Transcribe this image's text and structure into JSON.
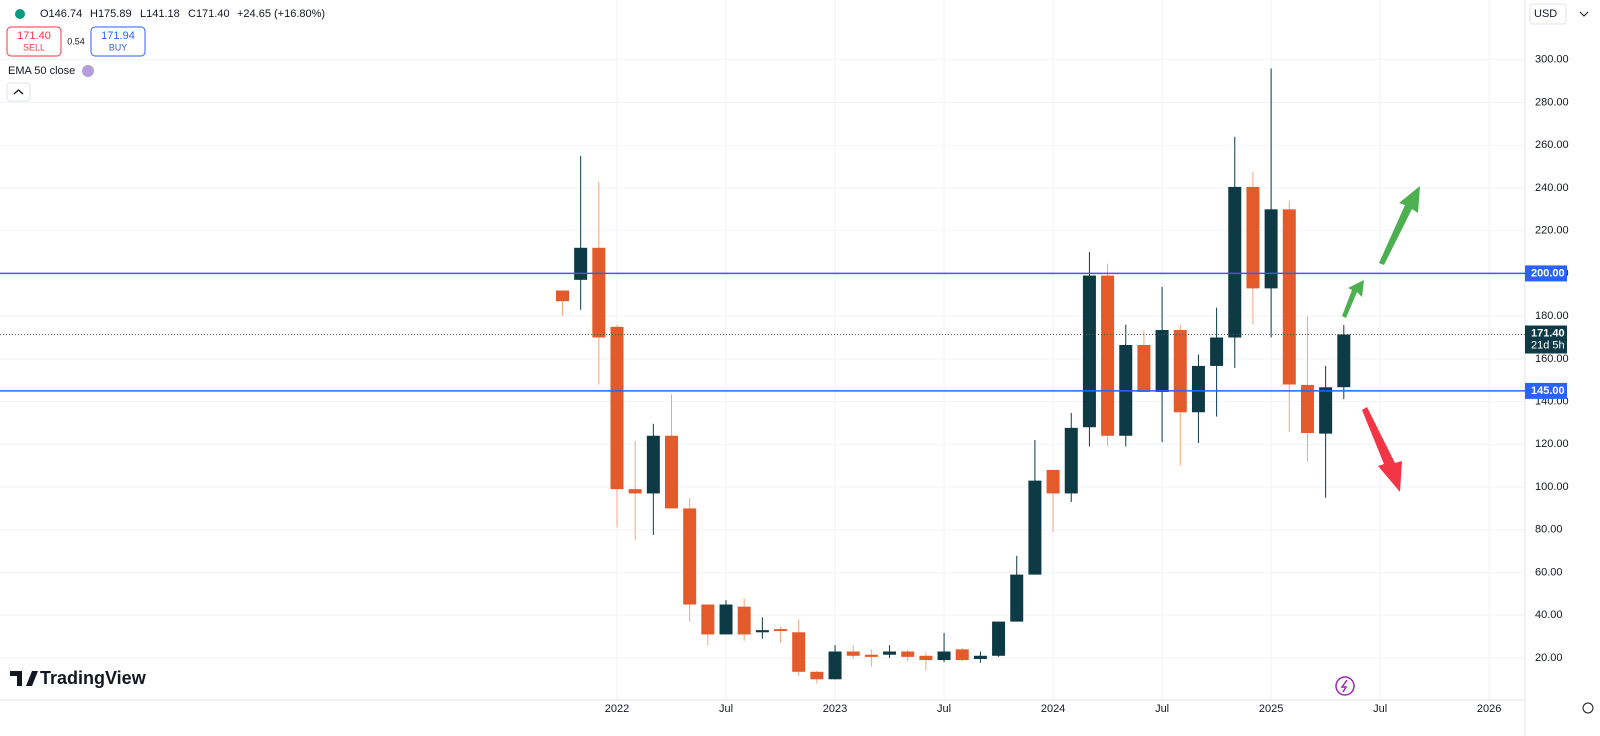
{
  "chart_data": {
    "type": "candlestick",
    "header": [
      "O146.74",
      "H175.89",
      "L141.18",
      "C171.40",
      "+24.65 (+16.80%)"
    ],
    "trade": {
      "sell_price": "171.40",
      "sell": "SELL",
      "spread": "0.54",
      "buy_price": "171.94",
      "buy": "BUY"
    },
    "indicator": "EMA 50 close",
    "currency": "USD",
    "logo": "TradingView",
    "categories": [
      null,
      null,
      null,
      "2022",
      null,
      null,
      null,
      null,
      null,
      "Jul",
      null,
      null,
      null,
      null,
      null,
      "2023",
      null,
      null,
      null,
      null,
      null,
      "Jul",
      null,
      null,
      null,
      null,
      null,
      "2024",
      null,
      null,
      null,
      null,
      null,
      "Jul",
      null,
      null,
      null,
      null,
      null,
      "2025",
      null,
      null,
      null,
      null,
      null,
      "Jul",
      null,
      null,
      null,
      null,
      null,
      "2026"
    ],
    "open": [
      192,
      197,
      212,
      175,
      99,
      97,
      124,
      90,
      45,
      31,
      44,
      32,
      33.5,
      32,
      13.5,
      10,
      23,
      21.5,
      21.5,
      23,
      21,
      19,
      24,
      19.5,
      21,
      37,
      59,
      108,
      97,
      128,
      199,
      124,
      166.5,
      144.5,
      173.5,
      135,
      156.7,
      170,
      240.5,
      193,
      230,
      147.8,
      125,
      146.74,
      null,
      null,
      null,
      null,
      null,
      null,
      null,
      null
    ],
    "high": [
      192,
      255,
      243,
      176,
      121.6,
      129.6,
      143.6,
      95,
      45,
      47,
      48,
      39,
      34.5,
      38,
      14,
      26,
      26,
      24,
      26,
      24,
      23,
      31.7,
      24.7,
      23,
      37,
      67.8,
      122,
      108,
      134.7,
      210,
      204.5,
      176,
      173.5,
      193.7,
      176,
      162,
      184,
      264,
      247.5,
      296,
      234,
      180,
      156.7,
      175.89,
      null,
      null,
      null,
      null,
      null,
      null,
      null,
      null
    ],
    "low": [
      180,
      183,
      148,
      81,
      75,
      77.6,
      90,
      37,
      26,
      31,
      28,
      29,
      27,
      11.6,
      8,
      10,
      19.5,
      16,
      20,
      18.6,
      14,
      18,
      18.6,
      17.7,
      20.5,
      37,
      59,
      79,
      93,
      119,
      119,
      119,
      144.5,
      121,
      110,
      120.6,
      133,
      155.8,
      176,
      170,
      125.8,
      111.8,
      95,
      141.18,
      null,
      null,
      null,
      null,
      null,
      null,
      null,
      null
    ],
    "close": [
      187,
      212,
      170,
      99,
      97,
      124,
      90,
      45,
      31,
      45,
      31,
      33,
      32.6,
      13.5,
      10,
      23,
      21,
      20.5,
      23,
      20.5,
      19,
      23,
      19,
      21,
      37,
      59,
      103,
      97,
      127.7,
      199,
      124,
      166.5,
      144.5,
      173.5,
      135,
      156.7,
      170,
      240.5,
      193,
      230,
      148,
      125.3,
      146.7,
      171.4,
      null,
      null,
      null,
      null,
      null,
      null,
      null,
      null
    ],
    "up_color": "#0d3a45",
    "down_color": "#e35a2b",
    "ylim": [
      0.3,
      328
    ],
    "yticks": [
      {
        "value": 20,
        "label": "20.00"
      },
      {
        "value": 40,
        "label": "40.00"
      },
      {
        "value": 60,
        "label": "60.00"
      },
      {
        "value": 80,
        "label": "80.00"
      },
      {
        "value": 100,
        "label": "100.00"
      },
      {
        "value": 120,
        "label": "120.00"
      },
      {
        "value": 140,
        "label": "140.00"
      },
      {
        "value": 160,
        "label": "160.00"
      },
      {
        "value": 180,
        "label": "180.00"
      },
      {
        "value": 200,
        "label": "200.00"
      },
      {
        "value": 220,
        "label": "220.00"
      },
      {
        "value": 240,
        "label": "240.00"
      },
      {
        "value": 260,
        "label": "260.00"
      },
      {
        "value": 280,
        "label": "280.00"
      },
      {
        "value": 300,
        "label": "300.00"
      }
    ],
    "hlines": [
      {
        "value": 200,
        "label": "200.00"
      },
      {
        "value": 145,
        "label": "145.00"
      }
    ],
    "hline_color": "#2962ff",
    "last_price": {
      "value": 171.4,
      "label": "171.40",
      "countdown": "21d 5h"
    },
    "grid": true
  }
}
